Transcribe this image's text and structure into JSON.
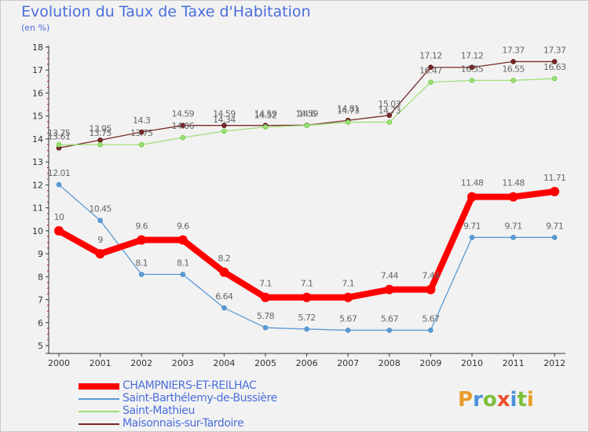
{
  "title": "Evolution du Taux de Taxe d'Habitation",
  "unit": "(en %)",
  "logo_text": "Proxiti",
  "chart_data": {
    "type": "line",
    "title": "Evolution du Taux de Taxe d'Habitation",
    "ylabel": "(en %)",
    "xlabel": "",
    "ylim": [
      5,
      18
    ],
    "y_ticks": [
      5,
      6,
      7,
      8,
      9,
      10,
      11,
      12,
      13,
      14,
      15,
      16,
      17,
      18
    ],
    "grid": false,
    "legend_position": "bottom-left",
    "x": [
      2000,
      2001,
      2002,
      2003,
      2004,
      2005,
      2006,
      2007,
      2008,
      2009,
      2010,
      2011,
      2012
    ],
    "series": [
      {
        "name": "CHAMPNIERS-ET-REILHAC",
        "color": "#ff0000",
        "width": 8,
        "values": [
          10,
          9,
          9.6,
          9.6,
          8.2,
          7.1,
          7.1,
          7.1,
          7.44,
          7.44,
          11.48,
          11.48,
          11.71
        ],
        "labels": [
          "10",
          "9",
          "9.6",
          "9.6",
          "8.2",
          "7.1",
          "7.1",
          "7.1",
          "7.44",
          "7.44",
          "11.48",
          "11.48",
          "11.71"
        ]
      },
      {
        "name": "Saint-Barthélemy-de-Bussière",
        "color": "#5b9bd5",
        "marker": "#4a8fcc",
        "width": 1.3,
        "values": [
          12.01,
          10.45,
          8.1,
          8.1,
          6.64,
          5.78,
          5.72,
          5.67,
          5.67,
          5.67,
          9.71,
          9.71,
          9.71
        ],
        "labels": [
          "12.01",
          "10.45",
          "8.1",
          "8.1",
          "6.64",
          "5.78",
          "5.72",
          "5.67",
          "5.67",
          "5.67",
          "9.71",
          "9.71",
          "9.71"
        ]
      },
      {
        "name": "Saint-Mathieu",
        "color": "#9de07a",
        "marker": "#7acd4c",
        "width": 1.3,
        "values": [
          13.75,
          13.75,
          13.75,
          14.06,
          14.34,
          14.52,
          14.59,
          14.73,
          14.73,
          16.47,
          16.55,
          16.55,
          16.63
        ],
        "labels": [
          "13.75",
          "13.75",
          "13.75",
          "14.06",
          "14.34",
          "14.52",
          "14.59",
          "14.73",
          "14.73",
          "16.47",
          "16.55",
          "16.55",
          "16.63"
        ]
      },
      {
        "name": "Maisonnais-sur-Tardoire",
        "color": "#7a2a2a",
        "marker": "#5c1414",
        "width": 1.3,
        "values": [
          13.61,
          13.95,
          14.3,
          14.59,
          14.59,
          14.59,
          14.6,
          14.81,
          15.03,
          17.12,
          17.12,
          17.37,
          17.37
        ],
        "labels": [
          "13.61",
          "13.95",
          "14.3",
          "14.59",
          "14.59",
          "14.59",
          "14.6",
          "14.81",
          "15.03",
          "17.12",
          "17.12",
          "17.37",
          "17.37"
        ]
      }
    ]
  },
  "colors": {
    "title": "#4b6edc",
    "axis": "#333333",
    "tick_mark": "#d40000",
    "label": "#666666"
  }
}
